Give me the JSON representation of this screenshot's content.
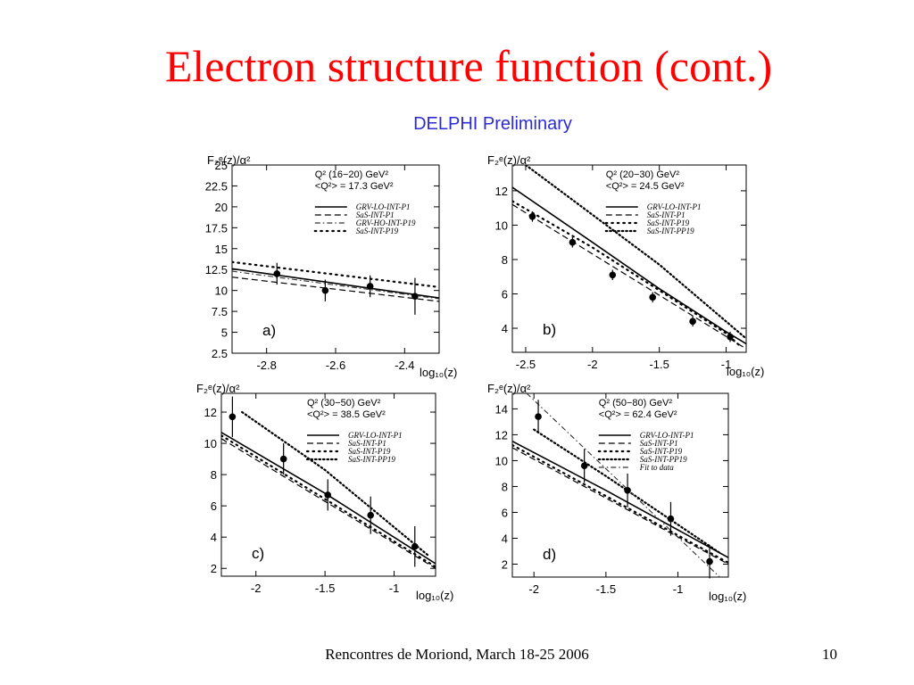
{
  "slide": {
    "title": "Electron structure function (cont.)",
    "subtitle": "DELPHI Preliminary",
    "footer": "Rencontres de Moriond, March 18-25 2006",
    "page_number": "10"
  },
  "chart_data": [
    {
      "type": "scatter",
      "panel_label": "a)",
      "ylabel": "F₂ᵉ(z)/α²",
      "xlabel": "log₁₀(z)",
      "xlim": [
        -2.9,
        -2.3
      ],
      "ylim": [
        2.5,
        25
      ],
      "x_ticks": [
        -2.8,
        -2.6,
        -2.4
      ],
      "x_tick_labels": [
        "-2.8",
        "-2.6",
        "-2.4"
      ],
      "y_ticks": [
        2.5,
        5,
        7.5,
        10,
        12.5,
        15,
        17.5,
        20,
        22.5,
        25
      ],
      "y_tick_labels": [
        "2.5",
        "5",
        "7.5",
        "10",
        "12.5",
        "15",
        "17.5",
        "20",
        "22.5",
        "25"
      ],
      "info": [
        "Q² (16−20) GeV²",
        "<Q²> = 17.3 GeV²"
      ],
      "legend": [
        {
          "label": "GRV-LO-INT-P1",
          "style": "solid"
        },
        {
          "label": "SaS-INT-P1",
          "style": "dashed"
        },
        {
          "label": "GRV-HO-INT-P19",
          "style": "dashdot"
        },
        {
          "label": "SaS-INT-P19",
          "style": "dotted"
        }
      ],
      "points": [
        {
          "x": -2.77,
          "y": 12.0,
          "err": 1.3
        },
        {
          "x": -2.63,
          "y": 10.0,
          "err": 1.3
        },
        {
          "x": -2.5,
          "y": 10.5,
          "err": 1.3
        },
        {
          "x": -2.37,
          "y": 9.3,
          "err": 2.2
        }
      ],
      "curves": [
        {
          "name": "GRV-LO-INT-P1",
          "style": "solid",
          "x": [
            -2.9,
            -2.3
          ],
          "y": [
            12.6,
            9.1
          ]
        },
        {
          "name": "SaS-INT-P1",
          "style": "dashed",
          "x": [
            -2.9,
            -2.3
          ],
          "y": [
            11.6,
            8.7
          ]
        },
        {
          "name": "GRV-HO-INT-P19",
          "style": "dashdot",
          "x": [
            -2.9,
            -2.3
          ],
          "y": [
            12.3,
            9.0
          ]
        },
        {
          "name": "SaS-INT-P19",
          "style": "dotted",
          "x": [
            -2.9,
            -2.3
          ],
          "y": [
            13.4,
            10.4
          ]
        }
      ]
    },
    {
      "type": "scatter",
      "panel_label": "b)",
      "ylabel": "F₂ᵉ(z)/α²",
      "xlabel": "log₁₀(z)",
      "xlim": [
        -2.6,
        -0.85
      ],
      "ylim": [
        2.6,
        13.5
      ],
      "x_ticks": [
        -2.5,
        -2,
        -1.5,
        -1
      ],
      "x_tick_labels": [
        "-2.5",
        "-2",
        "-1.5",
        "-1"
      ],
      "y_ticks": [
        4,
        6,
        8,
        10,
        12
      ],
      "y_tick_labels": [
        "4",
        "6",
        "8",
        "10",
        "12"
      ],
      "info": [
        "Q² (20−30) GeV²",
        "<Q²> = 24.5 GeV²"
      ],
      "legend": [
        {
          "label": "GRV-LO-INT-P1",
          "style": "solid"
        },
        {
          "label": "SaS-INT-P1",
          "style": "dashed"
        },
        {
          "label": "SaS-INT-P19",
          "style": "dotted"
        },
        {
          "label": "SaS-INT-PP19",
          "style": "dotted-dense"
        }
      ],
      "points": [
        {
          "x": -2.45,
          "y": 10.5,
          "err": 0.3
        },
        {
          "x": -2.15,
          "y": 9.0,
          "err": 0.3
        },
        {
          "x": -1.85,
          "y": 7.1,
          "err": 0.3
        },
        {
          "x": -1.55,
          "y": 5.8,
          "err": 0.3
        },
        {
          "x": -1.25,
          "y": 4.4,
          "err": 0.3
        },
        {
          "x": -0.97,
          "y": 3.5,
          "err": 0.3
        }
      ],
      "curves": [
        {
          "name": "GRV-LO-INT-P1",
          "style": "solid",
          "x": [
            -2.6,
            -2.0,
            -1.5,
            -1.0,
            -0.85
          ],
          "y": [
            12.2,
            9.0,
            6.3,
            3.8,
            3.1
          ]
        },
        {
          "name": "SaS-INT-P1",
          "style": "dashed",
          "x": [
            -2.6,
            -0.85
          ],
          "y": [
            11.2,
            2.8
          ]
        },
        {
          "name": "SaS-INT-P19",
          "style": "dotted",
          "x": [
            -2.6,
            -2.0,
            -1.5,
            -1.0,
            -0.9
          ],
          "y": [
            11.4,
            8.7,
            6.2,
            3.7,
            3.0
          ]
        },
        {
          "name": "SaS-INT-PP19",
          "style": "dotted-dense",
          "x": [
            -2.5,
            -1.5,
            -0.85
          ],
          "y": [
            13.5,
            7.7,
            3.4
          ]
        }
      ]
    },
    {
      "type": "scatter",
      "panel_label": "c)",
      "ylabel": "F₂ᵉ(z)/α²",
      "xlabel": "log₁₀(z)",
      "xlim": [
        -2.25,
        -0.7
      ],
      "ylim": [
        1.5,
        13.2
      ],
      "x_ticks": [
        -2,
        -1.5,
        -1
      ],
      "x_tick_labels": [
        "-2",
        "-1.5",
        "-1"
      ],
      "y_ticks": [
        2,
        4,
        6,
        8,
        10,
        12
      ],
      "y_tick_labels": [
        "2",
        "4",
        "6",
        "8",
        "10",
        "12"
      ],
      "info": [
        "Q² (30−50) GeV²",
        "<Q²> = 38.5 GeV²"
      ],
      "legend": [
        {
          "label": "GRV-LO-INT-P1",
          "style": "solid"
        },
        {
          "label": "SaS-INT-P1",
          "style": "dashed"
        },
        {
          "label": "SaS-INT-P19",
          "style": "dotted"
        },
        {
          "label": "SaS-INT-PP19",
          "style": "dotted-dense"
        }
      ],
      "points": [
        {
          "x": -2.17,
          "y": 11.7,
          "err": 1.3
        },
        {
          "x": -1.8,
          "y": 9.0,
          "err": 1.0
        },
        {
          "x": -1.48,
          "y": 6.7,
          "err": 1.0
        },
        {
          "x": -1.17,
          "y": 5.4,
          "err": 1.2
        },
        {
          "x": -0.85,
          "y": 3.4,
          "err": 1.3
        }
      ],
      "curves": [
        {
          "name": "GRV-LO-INT-P1",
          "style": "solid",
          "x": [
            -2.25,
            -1.5,
            -0.7
          ],
          "y": [
            10.7,
            6.8,
            2.3
          ]
        },
        {
          "name": "SaS-INT-P1",
          "style": "dashed",
          "x": [
            -2.25,
            -0.7
          ],
          "y": [
            10.3,
            2.0
          ]
        },
        {
          "name": "SaS-INT-P19",
          "style": "dotted",
          "x": [
            -2.25,
            -0.7
          ],
          "y": [
            10.5,
            2.1
          ]
        },
        {
          "name": "SaS-INT-PP19",
          "style": "dotted-dense",
          "x": [
            -2.1,
            -1.5,
            -0.75
          ],
          "y": [
            12.0,
            8.3,
            2.8
          ]
        }
      ]
    },
    {
      "type": "scatter",
      "panel_label": "d)",
      "ylabel": "F₂ᵉ(z)/α²",
      "xlabel": "log₁₀(z)",
      "xlim": [
        -2.15,
        -0.65
      ],
      "ylim": [
        1,
        15.2
      ],
      "x_ticks": [
        -2,
        -1.5,
        -1
      ],
      "x_tick_labels": [
        "-2",
        "-1.5",
        "-1"
      ],
      "y_ticks": [
        2,
        4,
        6,
        8,
        10,
        12,
        14
      ],
      "y_tick_labels": [
        "2",
        "4",
        "6",
        "8",
        "10",
        "12",
        "14"
      ],
      "info": [
        "Q² (50−80) GeV²",
        "<Q²> = 62.4 GeV²"
      ],
      "legend": [
        {
          "label": "GRV-LO-INT-P1",
          "style": "solid"
        },
        {
          "label": "SaS-INT-P1",
          "style": "dashed"
        },
        {
          "label": "SaS-INT-P19",
          "style": "dotted"
        },
        {
          "label": "SaS-INT-PP19",
          "style": "dotted-dense"
        },
        {
          "label": "Fit to data",
          "style": "dashdot"
        }
      ],
      "points": [
        {
          "x": -1.97,
          "y": 13.4,
          "err": 1.3
        },
        {
          "x": -1.65,
          "y": 9.6,
          "err": 1.3
        },
        {
          "x": -1.35,
          "y": 7.7,
          "err": 1.3
        },
        {
          "x": -1.05,
          "y": 5.5,
          "err": 1.3
        },
        {
          "x": -0.78,
          "y": 2.2,
          "err": 1.3
        }
      ],
      "curves": [
        {
          "name": "GRV-LO-INT-P1",
          "style": "solid",
          "x": [
            -2.15,
            -1.5,
            -0.65
          ],
          "y": [
            11.5,
            7.7,
            2.5
          ]
        },
        {
          "name": "SaS-INT-P1",
          "style": "dashed",
          "x": [
            -2.15,
            -0.65
          ],
          "y": [
            11.0,
            2.0
          ]
        },
        {
          "name": "SaS-INT-P19",
          "style": "dotted",
          "x": [
            -2.15,
            -0.65
          ],
          "y": [
            11.2,
            2.1
          ]
        },
        {
          "name": "SaS-INT-PP19",
          "style": "dotted-dense",
          "x": [
            -2.0,
            -1.5,
            -0.7
          ],
          "y": [
            12.4,
            8.8,
            2.8
          ]
        },
        {
          "name": "Fit to data",
          "style": "dashdot",
          "x": [
            -2.05,
            -0.7
          ],
          "y": [
            15.2,
            0.9
          ]
        }
      ]
    }
  ]
}
